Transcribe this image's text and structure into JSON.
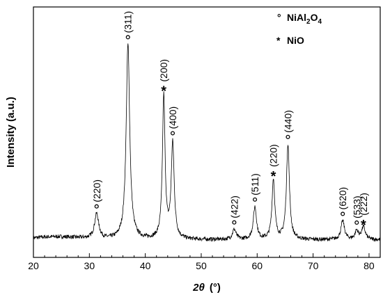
{
  "chart_data": {
    "type": "line",
    "xlabel_var": "2θ",
    "xlabel_unit": "(°)",
    "ylabel": "Intensity (a.u.)",
    "xlim": [
      20,
      82
    ],
    "ylim": [
      0,
      100
    ],
    "xticks": [
      20,
      30,
      40,
      50,
      60,
      70,
      80
    ],
    "legend": [
      {
        "marker": "°",
        "text": "NiAl",
        "sub1": "2",
        "mid": "O",
        "sub2": "4"
      },
      {
        "marker": "*",
        "text": "NiO"
      }
    ],
    "baseline": 7,
    "peaks": [
      {
        "x": 31.3,
        "h": 10,
        "w": 0.45,
        "label": "(220)",
        "phase": "NiAl2O4"
      },
      {
        "x": 36.9,
        "h": 78,
        "w": 0.38,
        "label": "(311)",
        "phase": "NiAl2O4"
      },
      {
        "x": 43.3,
        "h": 57,
        "w": 0.28,
        "label": "(200)",
        "phase": "NiO"
      },
      {
        "x": 44.9,
        "h": 38,
        "w": 0.32,
        "label": "(400)",
        "phase": "NiAl2O4"
      },
      {
        "x": 55.9,
        "h": 4,
        "w": 0.4,
        "label": "(422)",
        "phase": "NiAl2O4"
      },
      {
        "x": 59.6,
        "h": 13,
        "w": 0.35,
        "label": "(511)",
        "phase": "NiAl2O4"
      },
      {
        "x": 62.9,
        "h": 24,
        "w": 0.3,
        "label": "(220)",
        "phase": "NiO"
      },
      {
        "x": 65.5,
        "h": 38,
        "w": 0.32,
        "label": "(440)",
        "phase": "NiAl2O4"
      },
      {
        "x": 75.3,
        "h": 7.5,
        "w": 0.38,
        "label": "(620)",
        "phase": "NiAl2O4"
      },
      {
        "x": 77.8,
        "h": 3.5,
        "w": 0.35,
        "label": "(533)",
        "phase": "NiAl2O4"
      },
      {
        "x": 79.0,
        "h": 5,
        "w": 0.4,
        "label": "(222)",
        "phase": "NiO"
      }
    ]
  }
}
